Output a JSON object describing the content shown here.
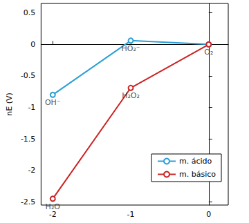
{
  "chart_data": {
    "type": "line",
    "y_label": "nE (V)",
    "x": [
      -2,
      -1,
      0
    ],
    "series": [
      {
        "name": "m. ácido",
        "color": "#2a9fd6",
        "values": [
          -0.8,
          0.06,
          0
        ],
        "marker": "circle"
      },
      {
        "name": "m. básico",
        "color": "#cc2222",
        "values": [
          -2.45,
          -0.69,
          0
        ],
        "marker": "circle"
      }
    ],
    "annotations": [
      {
        "text": "OH⁻",
        "x": -2,
        "y": -0.8
      },
      {
        "text": "HO₂⁻",
        "x": -1,
        "y": 0.06
      },
      {
        "text": "O₂",
        "x": 0,
        "y": 0
      },
      {
        "text": "H₂O₂",
        "x": -1,
        "y": -0.69
      },
      {
        "text": "H₂O",
        "x": -2,
        "y": -2.45
      }
    ],
    "xlim": [
      -2.15,
      0.25
    ],
    "xticks": [
      -2,
      -1,
      0
    ],
    "ylim": [
      -2.55,
      0.65
    ],
    "yticks": [
      -2.5,
      -2,
      -1.5,
      -1,
      -0.5,
      0,
      0.5
    ],
    "grid": false,
    "legend": "lower right"
  }
}
